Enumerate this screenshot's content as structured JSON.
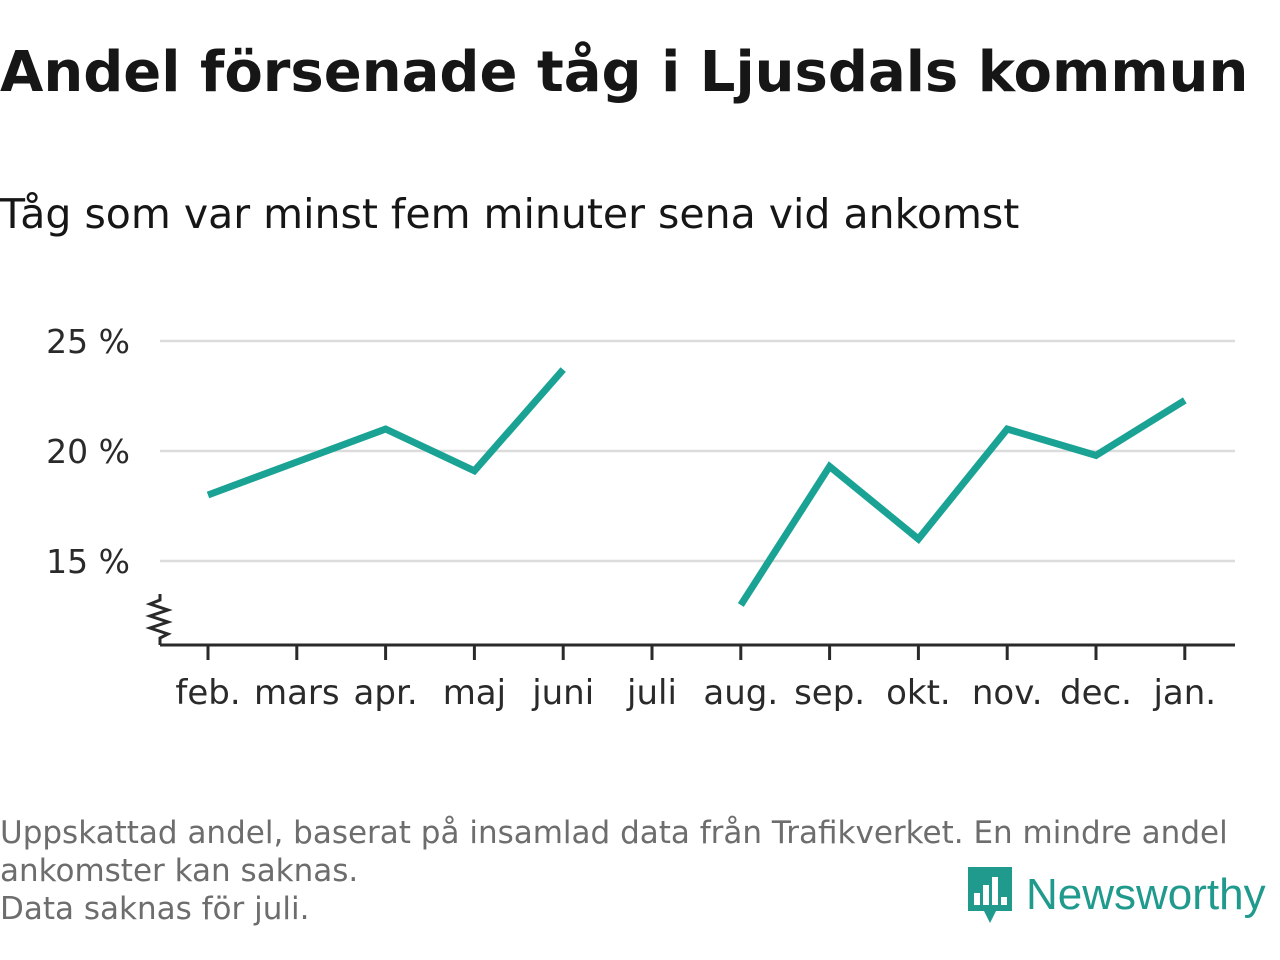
{
  "title": "Andel försenade tåg i Ljusdals kommun",
  "subtitle": "Tåg som var minst fem minuter sena vid ankomst",
  "footnote": {
    "line1": "Uppskattad andel, baserat på insamlad data från Trafikverket. En mindre andel",
    "line2": "ankomster kan saknas.",
    "line3": "Data saknas för juli."
  },
  "brand": {
    "name": "Newsworthy",
    "icon": "newsworthy-logo-icon"
  },
  "colors": {
    "line": "#1aa394",
    "grid": "#dcdcdc",
    "axis": "#2a2a2a",
    "brand": "#1f9a8d"
  },
  "chart_data": {
    "type": "line",
    "categories": [
      "feb.",
      "mars",
      "apr.",
      "maj",
      "juni",
      "juli",
      "aug.",
      "sep.",
      "okt.",
      "nov.",
      "dec.",
      "jan."
    ],
    "series": [
      {
        "values": [
          18.0,
          19.5,
          21.0,
          19.1,
          23.7,
          null,
          13.0,
          19.3,
          16.0,
          21.0,
          19.8,
          22.3
        ]
      }
    ],
    "yticks": [
      15,
      20,
      25
    ],
    "ytick_labels": [
      "15 %",
      "20 %",
      "25 %"
    ],
    "ylim": [
      11.2,
      25
    ],
    "y_axis_break": true,
    "grid": true
  }
}
